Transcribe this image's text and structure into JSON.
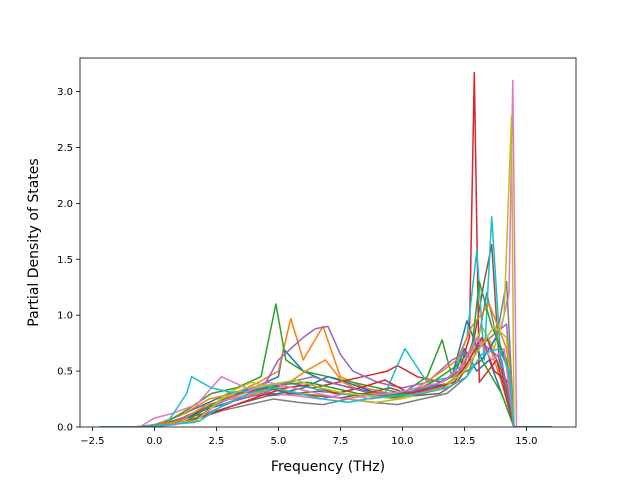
{
  "chart_data": {
    "type": "line",
    "title": "",
    "xlabel": "Frequency (THz)",
    "ylabel": "Partial Density of States",
    "xlim": [
      -3.0,
      17.0
    ],
    "ylim": [
      0.0,
      3.3
    ],
    "xticks": [
      -2.5,
      0.0,
      2.5,
      5.0,
      7.5,
      10.0,
      12.5,
      15.0
    ],
    "xtick_labels": [
      "−2.5",
      "0.0",
      "2.5",
      "5.0",
      "7.5",
      "10.0",
      "12.5",
      "15.0"
    ],
    "yticks": [
      0.0,
      0.5,
      1.0,
      1.5,
      2.0,
      2.5,
      3.0
    ],
    "ytick_labels": [
      "0.0",
      "0.5",
      "1.0",
      "1.5",
      "2.0",
      "2.5",
      "3.0"
    ],
    "grid": false,
    "legend": "none",
    "colors": [
      "#1f77b4",
      "#ff7f0e",
      "#2ca02c",
      "#d62728",
      "#9467bd",
      "#8c564b",
      "#e377c2",
      "#7f7f7f",
      "#bcbd22",
      "#17becf"
    ],
    "series": [
      {
        "color": "#1f77b4",
        "x": [
          -2.2,
          -0.8,
          0.0,
          1.0,
          2.0,
          3.0,
          4.0,
          5.0,
          5.2,
          6.0,
          7.0,
          8.0,
          9.0,
          10.0,
          11.0,
          12.0,
          12.5,
          13.0,
          13.5,
          14.0,
          14.5,
          16.0
        ],
        "y": [
          0.0,
          0.0,
          0.02,
          0.1,
          0.2,
          0.3,
          0.35,
          0.45,
          0.7,
          0.5,
          0.4,
          0.35,
          0.3,
          0.3,
          0.35,
          0.4,
          0.7,
          0.5,
          0.6,
          0.3,
          0.0,
          0.0
        ]
      },
      {
        "color": "#ff7f0e",
        "x": [
          -2.2,
          -0.6,
          0.2,
          1.2,
          2.2,
          3.2,
          4.2,
          5.0,
          5.5,
          6.0,
          6.8,
          7.5,
          8.5,
          9.5,
          10.5,
          11.5,
          12.3,
          12.8,
          13.4,
          14.0,
          14.5,
          16.0
        ],
        "y": [
          0.0,
          0.0,
          0.03,
          0.12,
          0.25,
          0.3,
          0.4,
          0.5,
          0.97,
          0.6,
          0.9,
          0.45,
          0.35,
          0.3,
          0.32,
          0.4,
          0.5,
          0.7,
          0.8,
          0.4,
          0.0,
          0.0
        ]
      },
      {
        "color": "#2ca02c",
        "x": [
          -2.2,
          -0.5,
          0.3,
          1.3,
          2.3,
          3.3,
          4.3,
          4.9,
          5.3,
          6.0,
          7.0,
          8.0,
          9.0,
          10.0,
          11.0,
          11.6,
          12.0,
          12.6,
          13.2,
          14.0,
          14.5,
          16.0
        ],
        "y": [
          0.0,
          0.0,
          0.02,
          0.15,
          0.3,
          0.35,
          0.45,
          1.1,
          0.6,
          0.5,
          0.45,
          0.4,
          0.35,
          0.3,
          0.45,
          0.78,
          0.45,
          0.5,
          0.6,
          0.3,
          0.0,
          0.0
        ]
      },
      {
        "color": "#d62728",
        "x": [
          -2.2,
          -0.4,
          0.4,
          1.4,
          2.4,
          3.4,
          4.4,
          5.4,
          6.4,
          7.4,
          8.4,
          9.4,
          9.8,
          10.6,
          11.6,
          12.3,
          12.7,
          12.9,
          13.1,
          13.8,
          14.5,
          16.0
        ],
        "y": [
          0.0,
          0.0,
          0.03,
          0.1,
          0.2,
          0.3,
          0.35,
          0.4,
          0.35,
          0.4,
          0.45,
          0.5,
          0.55,
          0.45,
          0.4,
          0.5,
          0.8,
          3.17,
          0.4,
          0.6,
          0.0,
          0.0
        ]
      },
      {
        "color": "#9467bd",
        "x": [
          -2.2,
          -0.3,
          0.5,
          1.5,
          2.5,
          3.5,
          4.5,
          5.0,
          5.5,
          6.0,
          6.5,
          7.0,
          7.5,
          8.0,
          9.0,
          10.0,
          11.0,
          12.0,
          13.0,
          14.2,
          14.5,
          16.0
        ],
        "y": [
          0.0,
          0.0,
          0.02,
          0.12,
          0.22,
          0.3,
          0.4,
          0.6,
          0.7,
          0.8,
          0.88,
          0.9,
          0.65,
          0.5,
          0.4,
          0.35,
          0.4,
          0.6,
          0.7,
          0.92,
          0.0,
          0.0
        ]
      },
      {
        "color": "#8c564b",
        "x": [
          -2.2,
          -0.5,
          0.6,
          1.6,
          2.6,
          3.6,
          4.6,
          5.6,
          6.6,
          7.6,
          8.6,
          9.6,
          10.6,
          11.6,
          12.4,
          12.9,
          13.3,
          13.6,
          13.9,
          14.2,
          14.5,
          16.0
        ],
        "y": [
          0.0,
          0.0,
          0.03,
          0.1,
          0.15,
          0.22,
          0.28,
          0.3,
          0.32,
          0.3,
          0.28,
          0.26,
          0.3,
          0.35,
          0.5,
          0.8,
          1.3,
          1.63,
          0.6,
          0.4,
          0.0,
          0.0
        ]
      },
      {
        "color": "#e377c2",
        "x": [
          -2.2,
          -0.6,
          0.0,
          0.7,
          1.7,
          2.7,
          3.7,
          4.7,
          5.7,
          6.7,
          7.7,
          8.7,
          9.7,
          10.7,
          11.7,
          12.5,
          13.0,
          13.5,
          14.0,
          14.3,
          14.45,
          14.6,
          16.0
        ],
        "y": [
          0.0,
          0.0,
          0.08,
          0.12,
          0.2,
          0.45,
          0.35,
          0.3,
          0.28,
          0.25,
          0.3,
          0.25,
          0.28,
          0.3,
          0.35,
          0.5,
          0.8,
          0.7,
          0.9,
          1.2,
          3.1,
          0.0,
          0.0
        ]
      },
      {
        "color": "#7f7f7f",
        "x": [
          -2.2,
          -0.4,
          0.8,
          1.8,
          2.8,
          3.8,
          4.8,
          5.8,
          6.8,
          7.8,
          8.8,
          9.8,
          10.8,
          11.8,
          12.6,
          13.0,
          13.4,
          13.8,
          14.2,
          14.5,
          16.0
        ],
        "y": [
          0.0,
          0.0,
          0.02,
          0.08,
          0.15,
          0.2,
          0.25,
          0.22,
          0.2,
          0.25,
          0.22,
          0.2,
          0.25,
          0.3,
          0.45,
          0.7,
          1.2,
          0.8,
          1.3,
          0.0,
          0.0
        ]
      },
      {
        "color": "#bcbd22",
        "x": [
          -2.2,
          -0.5,
          0.9,
          1.9,
          2.9,
          3.9,
          4.9,
          5.9,
          6.9,
          7.9,
          8.9,
          9.9,
          10.9,
          11.9,
          12.7,
          13.2,
          13.7,
          14.1,
          14.4,
          14.5,
          16.0
        ],
        "y": [
          0.0,
          0.0,
          0.03,
          0.1,
          0.3,
          0.4,
          0.35,
          0.3,
          0.28,
          0.25,
          0.22,
          0.25,
          0.3,
          0.4,
          0.6,
          0.9,
          0.7,
          1.0,
          2.78,
          0.0,
          0.0
        ]
      },
      {
        "color": "#17becf",
        "x": [
          -2.2,
          -0.6,
          0.5,
          1.3,
          1.5,
          2.3,
          3.3,
          4.3,
          5.3,
          6.3,
          7.3,
          8.3,
          9.3,
          10.1,
          11.0,
          12.0,
          12.6,
          13.0,
          13.3,
          13.6,
          14.0,
          14.5,
          16.0
        ],
        "y": [
          0.0,
          0.0,
          0.03,
          0.3,
          0.45,
          0.35,
          0.3,
          0.35,
          0.4,
          0.35,
          0.3,
          0.28,
          0.3,
          0.7,
          0.4,
          0.45,
          0.8,
          1.58,
          0.6,
          1.88,
          0.5,
          0.0,
          0.0
        ]
      },
      {
        "color": "#1f77b4",
        "x": [
          -2.2,
          -0.3,
          1.0,
          2.0,
          3.0,
          4.0,
          5.0,
          6.0,
          7.0,
          8.0,
          9.0,
          10.0,
          11.0,
          12.0,
          12.6,
          13.2,
          13.8,
          14.3,
          14.5,
          16.0
        ],
        "y": [
          0.0,
          0.0,
          0.05,
          0.15,
          0.22,
          0.28,
          0.3,
          0.35,
          0.45,
          0.38,
          0.3,
          0.28,
          0.35,
          0.45,
          0.95,
          0.6,
          0.8,
          0.5,
          0.0,
          0.0
        ]
      },
      {
        "color": "#ff7f0e",
        "x": [
          -2.2,
          -0.2,
          1.1,
          2.1,
          3.1,
          4.1,
          5.1,
          6.1,
          6.9,
          7.6,
          8.6,
          9.6,
          10.6,
          11.6,
          12.2,
          12.8,
          13.5,
          14.2,
          14.5,
          16.0
        ],
        "y": [
          0.0,
          0.0,
          0.06,
          0.2,
          0.25,
          0.3,
          0.35,
          0.5,
          0.6,
          0.4,
          0.3,
          0.3,
          0.35,
          0.5,
          0.6,
          0.9,
          1.1,
          0.7,
          0.0,
          0.0
        ]
      },
      {
        "color": "#2ca02c",
        "x": [
          -2.2,
          -0.4,
          1.2,
          2.2,
          3.2,
          4.2,
          5.2,
          6.2,
          7.2,
          8.2,
          9.2,
          10.2,
          11.2,
          12.2,
          12.8,
          13.1,
          13.6,
          14.2,
          14.5,
          16.0
        ],
        "y": [
          0.0,
          0.0,
          0.04,
          0.18,
          0.3,
          0.32,
          0.38,
          0.4,
          0.35,
          0.3,
          0.28,
          0.3,
          0.4,
          0.55,
          0.7,
          1.3,
          0.9,
          0.6,
          0.0,
          0.0
        ]
      },
      {
        "color": "#d62728",
        "x": [
          -2.2,
          -0.3,
          1.3,
          2.3,
          3.3,
          4.3,
          5.3,
          6.3,
          7.3,
          8.3,
          9.3,
          10.3,
          11.3,
          12.1,
          12.7,
          13.2,
          13.7,
          14.3,
          14.5,
          16.0
        ],
        "y": [
          0.0,
          0.0,
          0.05,
          0.12,
          0.2,
          0.28,
          0.35,
          0.38,
          0.3,
          0.35,
          0.42,
          0.3,
          0.35,
          0.4,
          0.6,
          0.8,
          0.5,
          0.4,
          0.0,
          0.0
        ]
      },
      {
        "color": "#9467bd",
        "x": [
          -2.2,
          -0.2,
          1.4,
          2.4,
          3.4,
          4.4,
          5.4,
          6.4,
          7.4,
          8.4,
          9.4,
          10.4,
          11.4,
          12.3,
          12.9,
          13.5,
          14.0,
          14.5,
          16.0
        ],
        "y": [
          0.0,
          0.0,
          0.04,
          0.15,
          0.25,
          0.3,
          0.4,
          0.45,
          0.38,
          0.32,
          0.3,
          0.32,
          0.38,
          0.5,
          0.75,
          0.7,
          0.6,
          0.0,
          0.0
        ]
      },
      {
        "color": "#8c564b",
        "x": [
          -2.2,
          -0.4,
          1.5,
          2.5,
          3.5,
          4.5,
          5.5,
          6.5,
          7.5,
          8.5,
          9.5,
          10.5,
          11.5,
          12.2,
          12.8,
          13.4,
          14.0,
          14.5,
          16.0
        ],
        "y": [
          0.0,
          0.0,
          0.05,
          0.2,
          0.3,
          0.35,
          0.3,
          0.28,
          0.26,
          0.3,
          0.35,
          0.28,
          0.3,
          0.4,
          0.6,
          0.8,
          0.5,
          0.0,
          0.0
        ]
      },
      {
        "color": "#e377c2",
        "x": [
          -2.2,
          -0.5,
          1.6,
          2.6,
          3.6,
          4.6,
          5.6,
          6.6,
          7.6,
          8.6,
          9.6,
          10.6,
          11.6,
          12.4,
          13.0,
          13.6,
          14.1,
          14.5,
          16.0
        ],
        "y": [
          0.0,
          0.0,
          0.04,
          0.22,
          0.3,
          0.4,
          0.35,
          0.3,
          0.25,
          0.28,
          0.3,
          0.35,
          0.4,
          0.55,
          0.8,
          0.6,
          0.7,
          0.0,
          0.0
        ]
      },
      {
        "color": "#bcbd22",
        "x": [
          -2.2,
          -0.3,
          1.7,
          2.7,
          3.7,
          4.7,
          5.7,
          6.7,
          7.7,
          8.7,
          9.7,
          10.7,
          11.7,
          12.5,
          13.1,
          13.7,
          14.2,
          14.5,
          16.0
        ],
        "y": [
          0.0,
          0.0,
          0.06,
          0.25,
          0.35,
          0.38,
          0.42,
          0.35,
          0.3,
          0.28,
          0.25,
          0.3,
          0.35,
          0.5,
          0.7,
          0.9,
          0.8,
          0.0,
          0.0
        ]
      },
      {
        "color": "#17becf",
        "x": [
          -2.2,
          -0.4,
          1.8,
          2.8,
          3.8,
          4.8,
          5.8,
          6.8,
          7.8,
          8.8,
          9.8,
          10.8,
          11.8,
          12.6,
          13.2,
          13.9,
          14.3,
          14.5,
          16.0
        ],
        "y": [
          0.0,
          0.0,
          0.05,
          0.2,
          0.3,
          0.35,
          0.3,
          0.25,
          0.22,
          0.26,
          0.28,
          0.3,
          0.35,
          0.45,
          0.65,
          0.7,
          0.5,
          0.0,
          0.0
        ]
      }
    ]
  }
}
